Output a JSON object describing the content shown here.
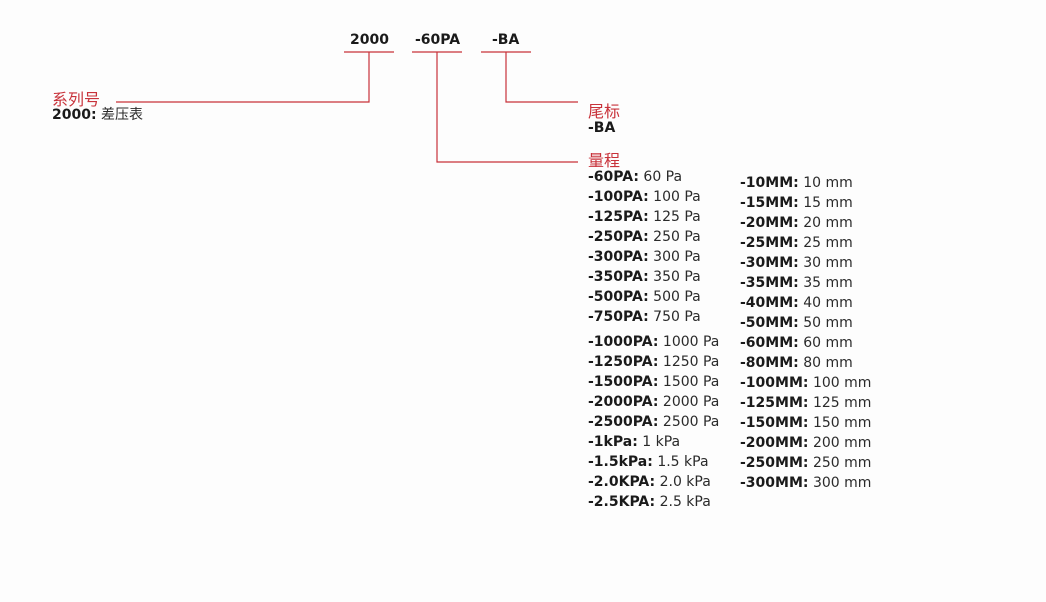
{
  "codes": {
    "series": "2000",
    "range": "-60PA",
    "suffix": "-BA"
  },
  "series_section": {
    "heading": "系列号",
    "code": "2000:",
    "desc": "差压表"
  },
  "suffix_section": {
    "heading": "尾标",
    "code": "-BA"
  },
  "range_section": {
    "heading": "量程",
    "pa_items": [
      {
        "code": "-60PA:",
        "value": "60 Pa"
      },
      {
        "code": "-100PA:",
        "value": "100 Pa"
      },
      {
        "code": "-125PA:",
        "value": "125 Pa"
      },
      {
        "code": "-250PA:",
        "value": "250 Pa"
      },
      {
        "code": "-300PA:",
        "value": "300 Pa"
      },
      {
        "code": "-350PA:",
        "value": "350 Pa"
      },
      {
        "code": "-500PA:",
        "value": "500 Pa"
      },
      {
        "code": "-750PA:",
        "value": "750 Pa"
      },
      {
        "code": "-1000PA:",
        "value": "1000 Pa"
      },
      {
        "code": "-1250PA:",
        "value": "1250 Pa"
      },
      {
        "code": "-1500PA:",
        "value": "1500 Pa"
      },
      {
        "code": "-2000PA:",
        "value": "2000 Pa"
      },
      {
        "code": "-2500PA:",
        "value": "2500 Pa"
      },
      {
        "code": "-1kPa:",
        "value": "1 kPa"
      },
      {
        "code": "-1.5kPa:",
        "value": "1.5 kPa"
      },
      {
        "code": "-2.0KPA:",
        "value": "2.0 kPa"
      },
      {
        "code": "-2.5KPA:",
        "value": "2.5 kPa"
      }
    ],
    "mm_items": [
      {
        "code": "-10MM:",
        "value": "10 mm"
      },
      {
        "code": "-15MM:",
        "value": "15 mm"
      },
      {
        "code": "-20MM:",
        "value": "20 mm"
      },
      {
        "code": "-25MM:",
        "value": "25 mm"
      },
      {
        "code": "-30MM:",
        "value": "30 mm"
      },
      {
        "code": "-35MM:",
        "value": "35 mm"
      },
      {
        "code": "-40MM:",
        "value": "40 mm"
      },
      {
        "code": "-50MM:",
        "value": "50 mm"
      },
      {
        "code": "-60MM:",
        "value": "60 mm"
      },
      {
        "code": "-80MM:",
        "value": "80 mm"
      },
      {
        "code": "-100MM:",
        "value": "100 mm"
      },
      {
        "code": "-125MM:",
        "value": "125 mm"
      },
      {
        "code": "-150MM:",
        "value": "150 mm"
      },
      {
        "code": "-200MM:",
        "value": "200 mm"
      },
      {
        "code": "-250MM:",
        "value": "250 mm"
      },
      {
        "code": "-300MM:",
        "value": "300 mm"
      }
    ]
  },
  "colors": {
    "accent": "#c8323a",
    "text": "#222222"
  }
}
